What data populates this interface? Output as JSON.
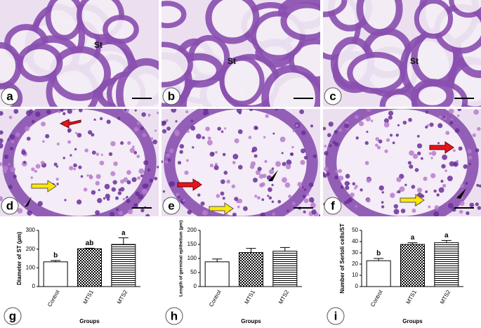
{
  "micrographs": [
    {
      "label": "a",
      "annotation": "St"
    },
    {
      "label": "b",
      "annotation": "St"
    },
    {
      "label": "c",
      "annotation": "St"
    },
    {
      "label": "d"
    },
    {
      "label": "e"
    },
    {
      "label": "f"
    }
  ],
  "chart_data": [
    {
      "type": "bar",
      "panel": "g",
      "ylabel": "Diameter of ST (µm)",
      "xlabel": "Groups",
      "categories": [
        "Control",
        "MTS1",
        "MTS2"
      ],
      "values": [
        132,
        202,
        225
      ],
      "errors": [
        7,
        3,
        35
      ],
      "annotations": [
        "b",
        "ab",
        "a"
      ],
      "fills": [
        "white",
        "checker",
        "lines"
      ],
      "ylim": [
        0,
        300
      ],
      "yticks": [
        0,
        100,
        200,
        300
      ]
    },
    {
      "type": "bar",
      "panel": "h",
      "ylabel": "Length of germinal epithelium (µm)",
      "xlabel": "Groups",
      "categories": [
        "Control",
        "MTS1",
        "MTS2"
      ],
      "values": [
        88,
        121,
        126
      ],
      "errors": [
        10,
        15,
        13
      ],
      "fills": [
        "white",
        "checker",
        "lines"
      ],
      "ylim": [
        0,
        200
      ],
      "yticks": [
        0,
        50,
        100,
        150,
        200
      ]
    },
    {
      "type": "bar",
      "panel": "i",
      "ylabel": "Number of Sertoli cells/ST",
      "xlabel": "Groups",
      "categories": [
        "Control",
        "MTS1",
        "MTS2"
      ],
      "values": [
        23,
        37.5,
        39
      ],
      "errors": [
        2,
        1.5,
        2
      ],
      "annotations": [
        "b",
        "a",
        "a"
      ],
      "fills": [
        "white",
        "checker",
        "lines"
      ],
      "ylim": [
        0,
        50
      ],
      "yticks": [
        0,
        10,
        20,
        30,
        40,
        50
      ]
    }
  ]
}
